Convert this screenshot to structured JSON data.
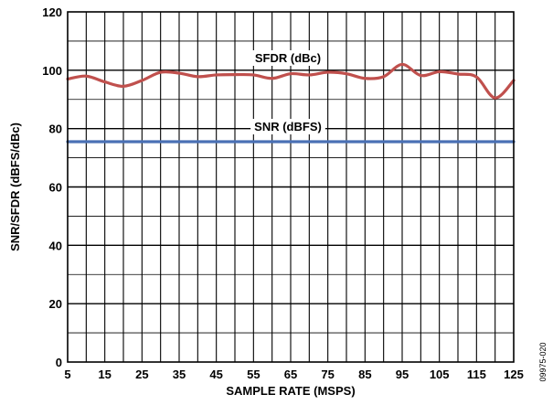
{
  "chart_data": {
    "type": "line",
    "xlabel": "SAMPLE RATE (MSPS)",
    "ylabel": "SNR/SFDR (dBFS/dBc)",
    "xlim": [
      5,
      125
    ],
    "ylim": [
      0,
      120
    ],
    "x_ticks": [
      5,
      15,
      25,
      35,
      45,
      55,
      65,
      75,
      85,
      95,
      105,
      115,
      125
    ],
    "x_minor_step": 5,
    "y_ticks": [
      0,
      20,
      40,
      60,
      80,
      100,
      120
    ],
    "y_minor_step": 10,
    "grid": true,
    "series": [
      {
        "name": "SFDR (dBc)",
        "color": "#c0504d",
        "x": [
          5,
          10,
          15,
          20,
          25,
          30,
          35,
          40,
          45,
          50,
          55,
          60,
          65,
          70,
          75,
          80,
          85,
          90,
          95,
          100,
          105,
          110,
          115,
          120,
          125
        ],
        "values": [
          97,
          98,
          96,
          94.5,
          96.5,
          99.3,
          99,
          97.8,
          98.4,
          98.5,
          98.4,
          97.2,
          98.8,
          98.4,
          99.3,
          98.8,
          97.2,
          97.8,
          102,
          98.2,
          99.5,
          98.7,
          97.7,
          90.5,
          96.5
        ]
      },
      {
        "name": "SNR (dBFS)",
        "color": "#4a70b5",
        "x": [
          5,
          125
        ],
        "values": [
          75.5,
          75.5
        ]
      }
    ],
    "annotations": [
      {
        "text": "SFDR (dBc)",
        "series": 0
      },
      {
        "text": "SNR (dBFS)",
        "series": 1
      }
    ]
  },
  "figure_id": "09975-020"
}
